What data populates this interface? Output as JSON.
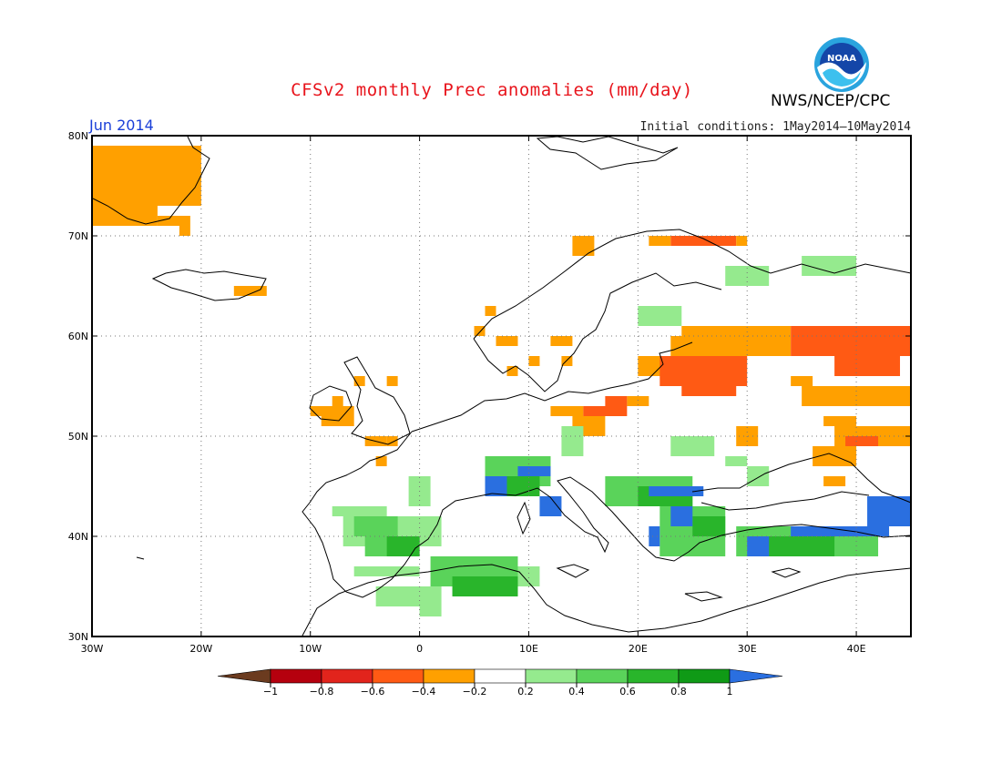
{
  "title": "CFSv2 monthly Prec anomalies (mm/day)",
  "organization": "NWS/NCEP/CPC",
  "logo_text": "NOAA",
  "period": "Jun 2014",
  "initial_conditions": "Initial conditions: 1May2014—10May2014",
  "map": {
    "lon_range": [
      -30,
      45
    ],
    "lat_range": [
      30,
      80
    ],
    "gridlines": true,
    "lat_ticks": [
      {
        "value": 30,
        "label": "30N"
      },
      {
        "value": 40,
        "label": "40N"
      },
      {
        "value": 50,
        "label": "50N"
      },
      {
        "value": 60,
        "label": "60N"
      },
      {
        "value": 70,
        "label": "70N"
      },
      {
        "value": 80,
        "label": "80N"
      }
    ],
    "lon_ticks": [
      {
        "value": -30,
        "label": "30W"
      },
      {
        "value": -20,
        "label": "20W"
      },
      {
        "value": -10,
        "label": "10W"
      },
      {
        "value": 0,
        "label": "0"
      },
      {
        "value": 10,
        "label": "10E"
      },
      {
        "value": 20,
        "label": "20E"
      },
      {
        "value": 30,
        "label": "30E"
      },
      {
        "value": 40,
        "label": "40E"
      }
    ]
  },
  "colorbar": {
    "labels": [
      "−1",
      "−0.8",
      "−0.6",
      "−0.4",
      "−0.2",
      "0.2",
      "0.4",
      "0.6",
      "0.8",
      "1"
    ],
    "low_color": "#6b3b1f",
    "colors": [
      "#b5000e",
      "#e2241c",
      "#ff5a14",
      "#ffa000",
      "#ffffff",
      "#95ea8e",
      "#5ad35a",
      "#29b52b",
      "#0f9a16"
    ],
    "high_color": "#2a6fe0"
  },
  "anomaly_regions": [
    {
      "label": "Greenland coast",
      "value": -0.3,
      "cells": [
        [
          -30,
          73,
          10,
          6
        ],
        [
          -30,
          71,
          6,
          2
        ],
        [
          -24,
          71,
          3,
          1
        ],
        [
          -22,
          70,
          1,
          1
        ]
      ]
    },
    {
      "label": "Iceland",
      "value": -0.3,
      "cells": [
        [
          -17,
          64,
          3,
          1
        ]
      ]
    },
    {
      "label": "Norway coast",
      "value": -0.3,
      "cells": [
        [
          14,
          68,
          2,
          2
        ],
        [
          6,
          62,
          1,
          1
        ],
        [
          5,
          60,
          1,
          1
        ],
        [
          7,
          59,
          2,
          1
        ],
        [
          12,
          59,
          2,
          1
        ],
        [
          13,
          57,
          1,
          1
        ],
        [
          10,
          57,
          1,
          1
        ],
        [
          8,
          56,
          1,
          1
        ]
      ]
    },
    {
      "label": "Ireland",
      "value": -0.3,
      "cells": [
        [
          -10,
          52,
          4,
          1
        ],
        [
          -9,
          51,
          3,
          1
        ],
        [
          -8,
          53,
          1,
          1
        ],
        [
          -6,
          55,
          1,
          1
        ],
        [
          -3,
          55,
          1,
          1
        ],
        [
          -5,
          49,
          2,
          1
        ],
        [
          -3,
          49,
          1,
          1
        ],
        [
          -4,
          47,
          1,
          1
        ]
      ]
    },
    {
      "label": "Central Europe",
      "value": -0.3,
      "cells": [
        [
          12,
          52,
          3,
          1
        ],
        [
          14,
          50,
          3,
          2
        ],
        [
          19,
          53,
          2,
          1
        ]
      ]
    },
    {
      "label": "Central Europe strong",
      "value": -0.5,
      "cells": [
        [
          15,
          52,
          4,
          1
        ],
        [
          17,
          53,
          2,
          1
        ]
      ]
    },
    {
      "label": "Barents coast",
      "value": -0.5,
      "cells": [
        [
          23,
          69,
          6,
          1
        ]
      ]
    },
    {
      "label": "Barents coast orange",
      "value": -0.3,
      "cells": [
        [
          21,
          69,
          2,
          1
        ],
        [
          29,
          69,
          1,
          1
        ]
      ]
    },
    {
      "label": "Western Russia",
      "value": -0.3,
      "cells": [
        [
          24,
          60,
          10,
          1
        ],
        [
          23,
          58,
          11,
          2
        ],
        [
          20,
          56,
          3,
          2
        ],
        [
          34,
          55,
          2,
          1
        ],
        [
          35,
          53,
          10,
          2
        ],
        [
          37,
          51,
          3,
          1
        ],
        [
          38,
          49,
          7,
          2
        ],
        [
          36,
          47,
          4,
          2
        ],
        [
          37,
          45,
          2,
          1
        ],
        [
          29,
          49,
          2,
          2
        ]
      ]
    },
    {
      "label": "Western Russia strong",
      "value": -0.5,
      "cells": [
        [
          22,
          55,
          8,
          3
        ],
        [
          24,
          54,
          5,
          1
        ],
        [
          34,
          58,
          11,
          3
        ],
        [
          38,
          56,
          6,
          2
        ],
        [
          39,
          49,
          3,
          1
        ]
      ]
    },
    {
      "label": "West Africa coast",
      "value": 0.3,
      "cells": [
        [
          -8,
          42,
          5,
          1
        ],
        [
          -7,
          39,
          9,
          3
        ],
        [
          -6,
          36,
          6,
          1
        ],
        [
          2,
          35,
          9,
          2
        ],
        [
          -4,
          33,
          6,
          2
        ],
        [
          0,
          32,
          2,
          1
        ],
        [
          13,
          48,
          2,
          3
        ],
        [
          23,
          48,
          4,
          2
        ],
        [
          28,
          47,
          2,
          1
        ],
        [
          30,
          45,
          2,
          2
        ],
        [
          20,
          61,
          4,
          2
        ],
        [
          28,
          65,
          4,
          2
        ],
        [
          35,
          66,
          5,
          2
        ],
        [
          -1,
          43,
          2,
          3
        ]
      ]
    },
    {
      "label": "Iberia and Alps",
      "value": 0.5,
      "cells": [
        [
          -6,
          40,
          4,
          2
        ],
        [
          -5,
          38,
          5,
          2
        ],
        [
          1,
          35,
          8,
          3
        ],
        [
          6,
          45,
          6,
          3
        ],
        [
          17,
          43,
          8,
          3
        ],
        [
          22,
          38,
          6,
          5
        ],
        [
          29,
          38,
          13,
          3
        ],
        [
          7,
          47,
          5,
          1
        ]
      ]
    },
    {
      "label": "Strong green",
      "value": 0.7,
      "cells": [
        [
          -3,
          38,
          3,
          2
        ],
        [
          3,
          34,
          6,
          2
        ],
        [
          8,
          44,
          3,
          2
        ],
        [
          20,
          43,
          5,
          2
        ],
        [
          25,
          40,
          3,
          2
        ],
        [
          31,
          38,
          7,
          2
        ]
      ]
    },
    {
      "label": "Blue maxima",
      "value": 1.1,
      "cells": [
        [
          6,
          44,
          2,
          2
        ],
        [
          9,
          46,
          3,
          1
        ],
        [
          11,
          42,
          2,
          2
        ],
        [
          21,
          44,
          5,
          1
        ],
        [
          23,
          41,
          2,
          2
        ],
        [
          30,
          38,
          2,
          2
        ],
        [
          34,
          40,
          9,
          1
        ],
        [
          41,
          41,
          4,
          3
        ],
        [
          21,
          39,
          1,
          2
        ]
      ]
    }
  ]
}
